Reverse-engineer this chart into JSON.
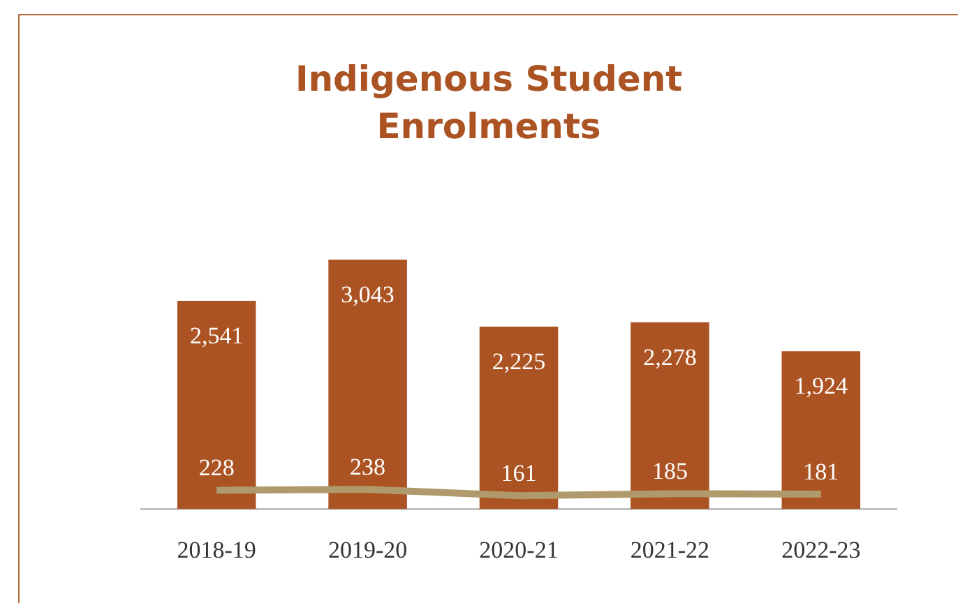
{
  "chart_data": {
    "type": "bar",
    "title": "Indigenous Student Enrolments",
    "categories": [
      "2018-19",
      "2019-20",
      "2020-21",
      "2021-22",
      "2022-23"
    ],
    "series": [
      {
        "color": "#ab5322",
        "values": [
          2541,
          3043,
          2225,
          2278,
          1924
        ],
        "value_labels": [
          "2,541",
          "3,043",
          "2,225",
          "2,278",
          "1,924"
        ]
      },
      {
        "type": "line",
        "color": "#b09a6c",
        "values": [
          228,
          238,
          161,
          185,
          181
        ],
        "value_labels": [
          "228",
          "238",
          "161",
          "185",
          "181"
        ]
      }
    ],
    "legend": false,
    "grid": false
  }
}
